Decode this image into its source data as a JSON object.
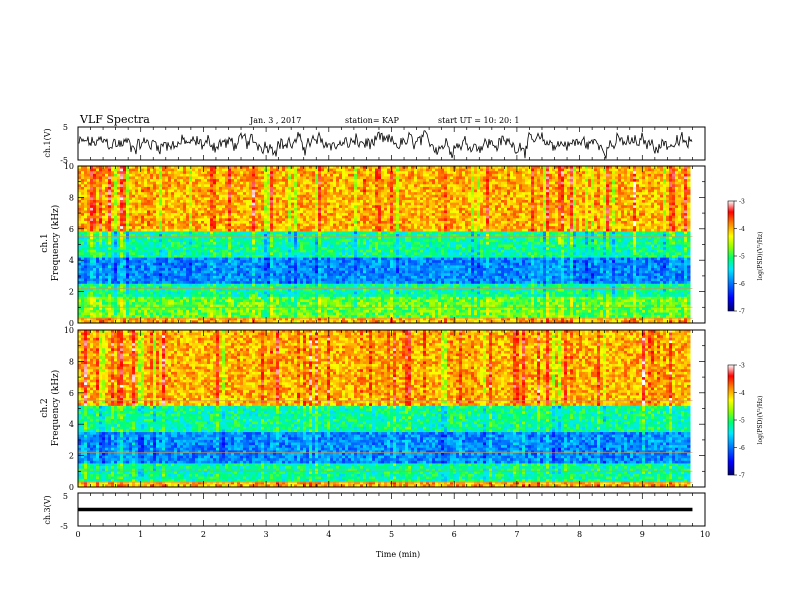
{
  "header": {
    "title": "VLF Spectra",
    "date": "Jan. 3 , 2017",
    "station": "station= KAP",
    "start": "start  UT =   10: 20: 1"
  },
  "colors": {
    "colormap": [
      "#000080",
      "#0000ff",
      "#0080ff",
      "#00e0ff",
      "#00ff80",
      "#80ff00",
      "#ffff00",
      "#ff8000",
      "#ff0000",
      "#ffffff"
    ],
    "trace": "#000000"
  },
  "chart_data": [
    {
      "type": "line",
      "panel": "ch1-waveform",
      "ylabel": "ch.1(V)",
      "ylim": [
        -5,
        5
      ],
      "yticks": [
        "5",
        "-5"
      ],
      "xlim": [
        0,
        10
      ],
      "description_signal": "noisy waveform around 0 V, amplitude about ±4 V"
    },
    {
      "type": "heatmap",
      "panel": "ch1-spectrogram",
      "ylabel": "ch.1",
      "ylabel2": "Frequency  (kHz)",
      "ylim": [
        0,
        10
      ],
      "yticks": [
        "0",
        "2",
        "4",
        "6",
        "8",
        "10"
      ],
      "xlim": [
        0,
        10
      ],
      "colorbar": {
        "label": "log(PSD)(V²/Hz)",
        "range": [
          -7,
          -3
        ],
        "ticks": [
          "-3",
          "-4",
          "-5",
          "-6",
          "-7"
        ]
      },
      "bands_khz": [
        {
          "from": 0,
          "to": 0.4,
          "level": "high"
        },
        {
          "from": 0.4,
          "to": 1.6,
          "level": "mid-high"
        },
        {
          "from": 1.6,
          "to": 2.5,
          "level": "mid"
        },
        {
          "from": 2.5,
          "to": 4.2,
          "level": "low"
        },
        {
          "from": 4.2,
          "to": 5.8,
          "level": "mid"
        },
        {
          "from": 5.8,
          "to": 10,
          "level": "high"
        }
      ]
    },
    {
      "type": "heatmap",
      "panel": "ch2-spectrogram",
      "ylabel": "ch.2",
      "ylabel2": "Frequency  (kHz)",
      "ylim": [
        0,
        10
      ],
      "yticks": [
        "0",
        "2",
        "4",
        "6",
        "8",
        "10"
      ],
      "xlim": [
        0,
        10
      ],
      "colorbar": {
        "label": "log(PSD)(V²/Hz)",
        "range": [
          -7,
          -3
        ],
        "ticks": [
          "-3",
          "-4",
          "-5",
          "-6",
          "-7"
        ]
      },
      "bands_khz": [
        {
          "from": 0,
          "to": 0.3,
          "level": "high"
        },
        {
          "from": 0.3,
          "to": 1.5,
          "level": "mid"
        },
        {
          "from": 1.5,
          "to": 3.5,
          "level": "low"
        },
        {
          "from": 3.5,
          "to": 5.2,
          "level": "mid"
        },
        {
          "from": 5.2,
          "to": 10,
          "level": "high"
        }
      ]
    },
    {
      "type": "line",
      "panel": "ch3-waveform",
      "ylabel": "ch.3(V)",
      "ylim": [
        -5,
        5
      ],
      "yticks": [
        "5",
        "-5"
      ],
      "xlim": [
        0,
        9.8
      ],
      "y_constant": 0,
      "xlabel": "Time  (min)",
      "xticks": [
        "0",
        "1",
        "2",
        "3",
        "4",
        "5",
        "6",
        "7",
        "8",
        "9",
        "10"
      ]
    }
  ]
}
